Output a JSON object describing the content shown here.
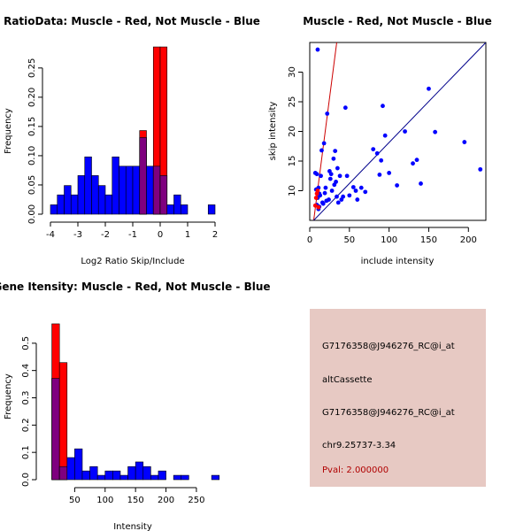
{
  "colors": {
    "muscle": "#ff0000",
    "not_muscle": "#0000ff",
    "overlap": "#7f007f",
    "panel_bg": "#e7c9c3",
    "pval_text": "#b00000"
  },
  "chart_data": [
    {
      "id": "ratio_hist",
      "type": "bar",
      "title": "RatioData: Muscle - Red, Not Muscle - Blue",
      "xlabel": "Log2 Ratio Skip/Include",
      "ylabel": "Frequency",
      "xlim": [
        -4,
        2
      ],
      "ylim": [
        0,
        0.28
      ],
      "x_ticks": [
        -4,
        -3,
        -2,
        -1,
        0,
        1,
        2
      ],
      "y_ticks": [
        0.0,
        0.05,
        0.1,
        0.15,
        0.2,
        0.25
      ],
      "y_tick_labels": [
        "0.00",
        "0.05",
        "0.10",
        "0.15",
        "0.20",
        "0.25"
      ],
      "bin_width": 0.25,
      "series": [
        {
          "name": "Not Muscle",
          "color": "#0000ff",
          "bin_starts": [
            -4.0,
            -3.75,
            -3.5,
            -3.25,
            -3.0,
            -2.75,
            -2.5,
            -2.25,
            -2.0,
            -1.75,
            -1.5,
            -1.25,
            -1.0,
            -0.75,
            -0.5,
            -0.25,
            0.0,
            0.25,
            0.5,
            0.75,
            1.0,
            1.25,
            1.5,
            1.75
          ],
          "values": [
            0.016,
            0.033,
            0.049,
            0.033,
            0.066,
            0.098,
            0.066,
            0.049,
            0.033,
            0.098,
            0.082,
            0.082,
            0.082,
            0.131,
            0.082,
            0.082,
            0.066,
            0.016,
            0.033,
            0.016,
            0.0,
            0.0,
            0.0,
            0.016
          ]
        },
        {
          "name": "Muscle",
          "color": "#ff0000",
          "bin_starts": [
            -4.0,
            -3.75,
            -3.5,
            -3.25,
            -3.0,
            -2.75,
            -2.5,
            -2.25,
            -2.0,
            -1.75,
            -1.5,
            -1.25,
            -1.0,
            -0.75,
            -0.5,
            -0.25,
            0.0,
            0.25,
            0.5,
            0.75,
            1.0,
            1.25,
            1.5,
            1.75
          ],
          "values": [
            0,
            0,
            0,
            0,
            0,
            0,
            0,
            0,
            0,
            0,
            0,
            0,
            0,
            0.143,
            0,
            0.286,
            0.286,
            0.0,
            0,
            0,
            0,
            0,
            0,
            0
          ]
        }
      ]
    },
    {
      "id": "intensity_scatter",
      "type": "scatter",
      "title": "Muscle - Red, Not Muscle - Blue",
      "xlabel": "include intensity",
      "ylabel": "skip intensity",
      "xlim": [
        0,
        222
      ],
      "ylim": [
        5,
        35
      ],
      "x_ticks": [
        0,
        50,
        100,
        150,
        200
      ],
      "y_ticks": [
        10,
        15,
        20,
        25,
        30
      ],
      "lines": [
        {
          "name": "Muscle fit",
          "color": "#cc0000",
          "x": [
            5,
            34
          ],
          "y": [
            5,
            35
          ]
        },
        {
          "name": "Not Muscle diagonal",
          "color": "#00008b",
          "x": [
            5,
            222
          ],
          "y": [
            5,
            35
          ]
        }
      ],
      "series": [
        {
          "name": "Not Muscle",
          "color": "#0000ff",
          "x": [
            10,
            7,
            9,
            11,
            12,
            15,
            18,
            20,
            22,
            25,
            27,
            30,
            32,
            35,
            38,
            40,
            42,
            45,
            50,
            55,
            58,
            60,
            65,
            70,
            80,
            85,
            88,
            90,
            92,
            95,
            100,
            110,
            120,
            130,
            135,
            140,
            150,
            158,
            195,
            215,
            47,
            28,
            33,
            36,
            24,
            17,
            13,
            16,
            19,
            8,
            9,
            14,
            21,
            26,
            31,
            34,
            12,
            11,
            10
          ],
          "y": [
            33.8,
            13.0,
            12.8,
            10.5,
            9.5,
            16.8,
            18.0,
            10.5,
            23.0,
            13.3,
            12.8,
            15.4,
            16.7,
            13.8,
            12.5,
            8.5,
            9.0,
            24.0,
            9.2,
            10.6,
            10.0,
            8.5,
            10.5,
            9.8,
            17.0,
            16.3,
            12.7,
            15.1,
            24.3,
            19.3,
            13.0,
            10.9,
            20.0,
            14.6,
            15.2,
            11.2,
            27.2,
            19.9,
            18.2,
            13.6,
            12.5,
            10.0,
            11.5,
            8.0,
            8.5,
            7.8,
            9.2,
            8.0,
            9.6,
            10.2,
            7.6,
            12.5,
            8.3,
            12.0,
            11.0,
            9.0,
            7.3,
            6.9,
            8.8
          ]
        },
        {
          "name": "Muscle",
          "color": "#ff0000",
          "x": [
            7,
            8,
            9,
            10,
            11
          ],
          "y": [
            7.5,
            8.8,
            9.5,
            10.0,
            7.2
          ]
        }
      ]
    },
    {
      "id": "gene_intensity_hist",
      "type": "bar",
      "title": "Gene Itensity: Muscle - Red, Not Muscle - Blue",
      "xlabel": "Intensity",
      "ylabel": "Frequency",
      "xlim": [
        0,
        285
      ],
      "ylim": [
        0,
        0.6
      ],
      "x_ticks": [
        50,
        100,
        150,
        200,
        250
      ],
      "y_ticks": [
        0.0,
        0.1,
        0.2,
        0.3,
        0.4,
        0.5
      ],
      "y_tick_labels": [
        "0.0",
        "0.1",
        "0.2",
        "0.3",
        "0.4",
        "0.5"
      ],
      "bin_width": 12.5,
      "series": [
        {
          "name": "Not Muscle",
          "color": "#0000ff",
          "bin_starts": [
            12.5,
            25,
            37.5,
            50,
            62.5,
            75,
            87.5,
            100,
            112.5,
            125,
            137.5,
            150,
            162.5,
            175,
            187.5,
            200,
            212.5,
            225,
            237.5,
            250,
            262.5,
            275
          ],
          "values": [
            0.371,
            0.048,
            0.081,
            0.113,
            0.032,
            0.048,
            0.016,
            0.032,
            0.032,
            0.016,
            0.048,
            0.065,
            0.048,
            0.016,
            0.032,
            0.0,
            0.016,
            0.016,
            0.0,
            0.0,
            0.0,
            0.016
          ]
        },
        {
          "name": "Muscle",
          "color": "#ff0000",
          "bin_starts": [
            12.5,
            25,
            37.5,
            50,
            62.5,
            75,
            87.5,
            100,
            112.5,
            125,
            137.5,
            150,
            162.5,
            175,
            187.5,
            200,
            212.5,
            225,
            237.5,
            250,
            262.5,
            275
          ],
          "values": [
            0.571,
            0.429,
            0,
            0,
            0,
            0,
            0,
            0,
            0,
            0,
            0,
            0,
            0,
            0,
            0,
            0,
            0,
            0,
            0,
            0,
            0,
            0
          ]
        }
      ]
    }
  ],
  "info_panel": {
    "gene_id": "G7176358@J946276_RC@i_at",
    "event_type": "altCassette",
    "probe_id": "G7176358@J946276_RC@i_at",
    "location": "chr9.25737-3.34",
    "pval": "Pval: 2.000000"
  }
}
